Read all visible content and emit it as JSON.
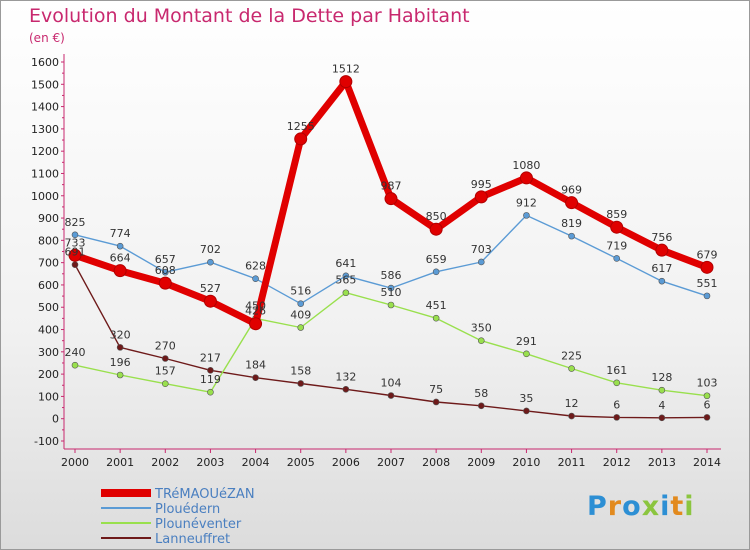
{
  "chart_data": {
    "type": "line",
    "title": "Evolution du Montant de la Dette par Habitant",
    "subtitle": "(en €)",
    "x": [
      "2000",
      "2001",
      "2002",
      "2003",
      "2004",
      "2005",
      "2006",
      "2007",
      "2008",
      "2009",
      "2010",
      "2011",
      "2012",
      "2013",
      "2014"
    ],
    "ylim": [
      -100,
      1600
    ],
    "yticks": [
      -100,
      0,
      100,
      200,
      300,
      400,
      500,
      600,
      700,
      800,
      900,
      1000,
      1100,
      1200,
      1300,
      1400,
      1500,
      1600
    ],
    "grid": false,
    "legend_position": "bottom-left",
    "series": [
      {
        "name": "TRéMAOUéZAN",
        "color": "#e00000",
        "values": [
          733,
          664,
          608,
          527,
          426,
          1255,
          1512,
          987,
          850,
          995,
          1080,
          969,
          859,
          756,
          679
        ]
      },
      {
        "name": "Plouédern",
        "color": "#5b9bd5",
        "values": [
          825,
          774,
          657,
          702,
          628,
          516,
          641,
          586,
          659,
          703,
          912,
          819,
          719,
          617,
          551
        ]
      },
      {
        "name": "Plounéventer",
        "color": "#99e04d",
        "values": [
          240,
          196,
          157,
          119,
          450,
          409,
          565,
          510,
          451,
          350,
          291,
          225,
          161,
          128,
          103
        ]
      },
      {
        "name": "Lanneuffret",
        "color": "#6e1a1a",
        "values": [
          691,
          320,
          270,
          217,
          184,
          158,
          132,
          104,
          75,
          58,
          35,
          12,
          6,
          4,
          6
        ]
      }
    ]
  },
  "logo": {
    "letters": [
      "P",
      "r",
      "o",
      "x",
      "i",
      "t",
      "i"
    ],
    "colors": [
      "#2d8fd4",
      "#e28a1e",
      "#2d8fd4",
      "#8bc53f",
      "#2d8fd4",
      "#e28a1e",
      "#8bc53f"
    ]
  }
}
